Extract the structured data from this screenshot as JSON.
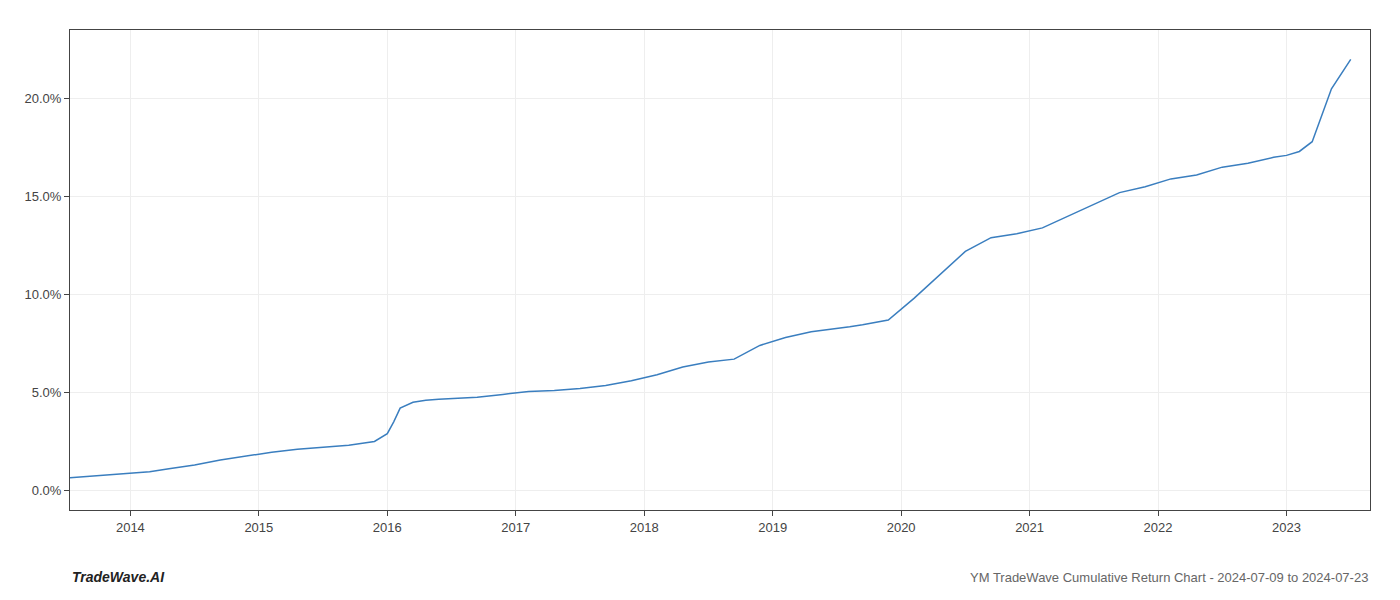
{
  "chart_data": {
    "type": "line",
    "title": "YM TradeWave Cumulative Return Chart - 2024-07-09 to 2024-07-23",
    "annotations": [
      "TradeWave.AI"
    ],
    "x": [
      2013.53,
      2014.0,
      2014.15,
      2014.3,
      2014.5,
      2014.7,
      2014.9,
      2015.1,
      2015.3,
      2015.5,
      2015.7,
      2015.9,
      2016.0,
      2016.05,
      2016.1,
      2016.2,
      2016.3,
      2016.4,
      2016.55,
      2016.7,
      2016.9,
      2017.1,
      2017.3,
      2017.5,
      2017.7,
      2017.9,
      2018.1,
      2018.3,
      2018.5,
      2018.7,
      2018.9,
      2019.0,
      2019.1,
      2019.3,
      2019.5,
      2019.6,
      2019.7,
      2019.9,
      2020.1,
      2020.3,
      2020.5,
      2020.7,
      2020.9,
      2021.1,
      2021.3,
      2021.5,
      2021.7,
      2021.9,
      2022.1,
      2022.3,
      2022.5,
      2022.7,
      2022.9,
      2023.0,
      2023.1,
      2023.2,
      2023.35,
      2023.5
    ],
    "values": [
      0.65,
      0.85,
      0.95,
      1.1,
      1.3,
      1.55,
      1.75,
      1.95,
      2.1,
      2.2,
      2.3,
      2.5,
      2.9,
      3.5,
      4.2,
      4.5,
      4.6,
      4.65,
      4.7,
      4.75,
      4.9,
      5.05,
      5.1,
      5.2,
      5.35,
      5.6,
      5.9,
      6.3,
      6.55,
      6.7,
      7.4,
      7.6,
      7.8,
      8.1,
      8.25,
      8.35,
      8.45,
      8.7,
      9.8,
      11.0,
      12.2,
      12.9,
      13.1,
      13.4,
      14.0,
      14.6,
      15.2,
      15.5,
      15.9,
      16.1,
      16.5,
      16.7,
      17.0,
      17.1,
      17.3,
      17.8,
      20.5,
      22.0
    ],
    "color": "#3a7ebf",
    "xlim": [
      2013.53,
      2023.65
    ],
    "xticks": [
      2014,
      2015,
      2016,
      2017,
      2018,
      2019,
      2020,
      2021,
      2022,
      2023
    ],
    "ylim": [
      -1.0,
      23.5
    ],
    "yticks": [
      {
        "value": 0.0,
        "label": "0.0%"
      },
      {
        "value": 5.0,
        "label": "5.0%"
      },
      {
        "value": 10.0,
        "label": "10.0%"
      },
      {
        "value": 15.0,
        "label": "15.0%"
      },
      {
        "value": 20.0,
        "label": "20.0%"
      }
    ],
    "grid": true
  }
}
